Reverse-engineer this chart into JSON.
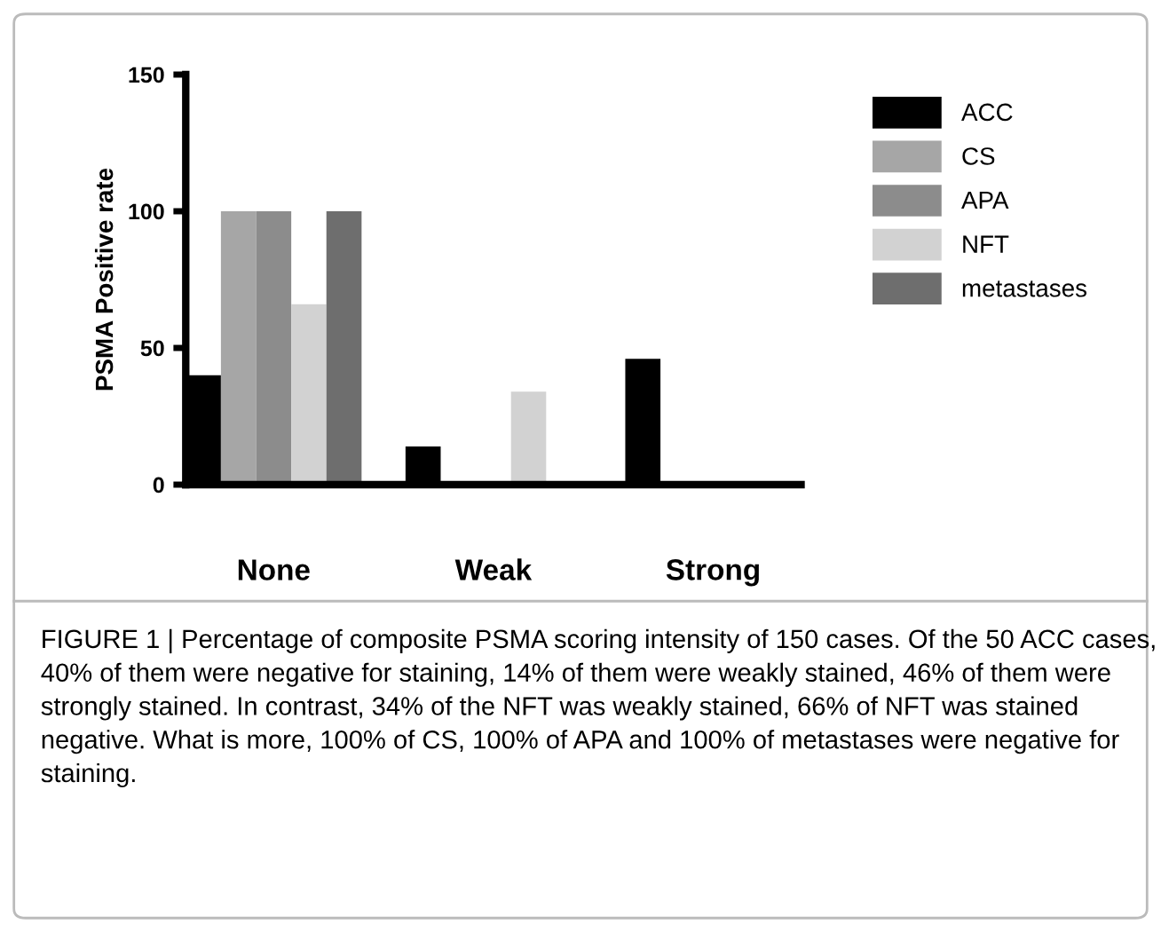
{
  "chart_data": {
    "type": "bar",
    "ylabel": "PSMA Positive rate",
    "categories": [
      "None",
      "Weak",
      "Strong"
    ],
    "series": [
      {
        "name": "ACC",
        "color": "#000000",
        "values": [
          40,
          14,
          46
        ]
      },
      {
        "name": "CS",
        "color": "#a6a6a6",
        "values": [
          100,
          0,
          0
        ]
      },
      {
        "name": "APA",
        "color": "#8c8c8c",
        "values": [
          100,
          0,
          0
        ]
      },
      {
        "name": "NFT",
        "color": "#d2d2d2",
        "values": [
          66,
          34,
          0
        ]
      },
      {
        "name": "metastases",
        "color": "#6e6e6e",
        "values": [
          100,
          0,
          0
        ]
      }
    ],
    "ylim": [
      0,
      150
    ],
    "yticks": [
      0,
      50,
      100,
      150
    ],
    "grid": false,
    "legend": "right",
    "annotations": [
      "FIGURE 1 | Percentage of composite PSMA scoring intensity of 150 cases. Of the 50 ACC cases, 40% of them were negative for staining, 14% of them were weakly stained, 46% of them were strongly stained. In contrast, 34% of the NFT was weakly stained, 66% of NFT was stained negative. What is more, 100% of CS, 100% of APA and 100% of metastases were negative for staining."
    ]
  }
}
